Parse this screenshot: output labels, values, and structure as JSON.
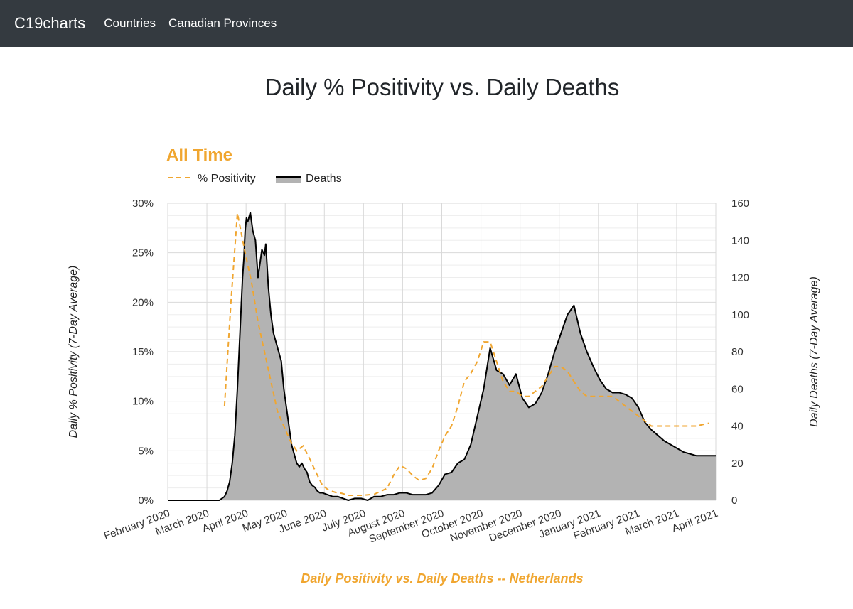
{
  "nav": {
    "brand": "C19charts",
    "links": [
      "Countries",
      "Canadian Provinces"
    ]
  },
  "page_title": "Daily % Positivity vs. Daily Deaths",
  "colors": {
    "navbar": "#343a40",
    "positivity": "#f0a630",
    "deaths_fill": "#b3b3b3",
    "deaths_line": "#000000",
    "grid": "#d9d9d9"
  },
  "chart_data": {
    "type": "line",
    "title": "All Time",
    "subtitle": "Daily Positivity vs. Daily Deaths -- Netherlands",
    "xlabel": "Daily Positivity vs. Daily Deaths -- Netherlands",
    "ylabel_left": "Daily % Positivity (7-Day Average)",
    "ylabel_right": "Daily Deaths (7-Day Average)",
    "legend": [
      "% Positivity",
      "Deaths"
    ],
    "legend_position": "top-left",
    "x_ticks": [
      "February 2020",
      "March 2020",
      "April 2020",
      "May 2020",
      "June 2020",
      "July 2020",
      "August 2020",
      "September 2020",
      "October 2020",
      "November 2020",
      "December 2020",
      "January 2021",
      "February 2021",
      "March 2021",
      "April 2021"
    ],
    "x_range_days": [
      0,
      425
    ],
    "y_left": {
      "ticks": [
        "0%",
        "5%",
        "10%",
        "15%",
        "20%",
        "25%",
        "30%"
      ],
      "range": [
        0,
        30
      ]
    },
    "y_right": {
      "ticks": [
        "0",
        "20",
        "40",
        "60",
        "80",
        "100",
        "120",
        "140",
        "160"
      ],
      "range": [
        0,
        160
      ]
    },
    "grid": true,
    "series": [
      {
        "name": "% Positivity",
        "axis": "left",
        "style": "dashed",
        "x": [
          44,
          49,
          54,
          57,
          60,
          65,
          70,
          75,
          80,
          85,
          90,
          95,
          100,
          105,
          110,
          115,
          120,
          125,
          130,
          135,
          140,
          150,
          160,
          170,
          175,
          180,
          185,
          190,
          195,
          200,
          205,
          210,
          215,
          220,
          225,
          230,
          235,
          240,
          245,
          250,
          255,
          260,
          265,
          270,
          275,
          280,
          285,
          290,
          295,
          300,
          305,
          310,
          315,
          320,
          325,
          330,
          335,
          340,
          345,
          350,
          355,
          360,
          365,
          370,
          375,
          380,
          385,
          390,
          395,
          400,
          405,
          410,
          420
        ],
        "values": [
          9.5,
          20,
          29,
          27,
          25,
          22,
          18,
          15,
          12,
          9,
          7.5,
          6,
          5,
          5.5,
          4.2,
          2.8,
          1.5,
          1.0,
          0.8,
          0.7,
          0.5,
          0.5,
          0.6,
          1.2,
          2.5,
          3.5,
          3.2,
          2.5,
          2,
          2.2,
          3.2,
          5,
          6.5,
          7.5,
          9.5,
          12,
          12.8,
          14,
          16,
          16,
          14,
          12,
          11,
          11,
          10.5,
          10.5,
          11,
          11.5,
          12.5,
          13.5,
          13.5,
          13,
          12,
          11,
          10.5,
          10.5,
          10.5,
          10.5,
          10.5,
          10,
          9.5,
          9,
          8.5,
          8,
          7.5,
          7.5,
          7.5,
          7.5,
          7.5,
          7.5,
          7.5,
          7.5,
          7.8
        ]
      },
      {
        "name": "Deaths",
        "axis": "right",
        "style": "area",
        "x": [
          0,
          40,
          44,
          46,
          48,
          50,
          52,
          54,
          56,
          58,
          59,
          60,
          61,
          62,
          64,
          66,
          68,
          70,
          72,
          73,
          75,
          76,
          78,
          80,
          82,
          84,
          86,
          88,
          90,
          92,
          94,
          96,
          98,
          100,
          102,
          104,
          106,
          108,
          110,
          112,
          114,
          116,
          118,
          120,
          124,
          128,
          132,
          136,
          140,
          145,
          150,
          155,
          160,
          165,
          170,
          175,
          180,
          185,
          190,
          195,
          200,
          205,
          210,
          215,
          220,
          225,
          230,
          235,
          240,
          245,
          250,
          255,
          260,
          265,
          270,
          275,
          280,
          285,
          290,
          295,
          300,
          305,
          310,
          315,
          320,
          325,
          330,
          335,
          340,
          345,
          350,
          355,
          360,
          365,
          370,
          375,
          380,
          385,
          390,
          395,
          400,
          405,
          410,
          415,
          420,
          425
        ],
        "values": [
          0,
          0,
          2,
          5,
          10,
          20,
          35,
          60,
          90,
          120,
          130,
          145,
          152,
          150,
          155,
          145,
          140,
          120,
          130,
          135,
          132,
          138,
          115,
          100,
          90,
          85,
          80,
          75,
          60,
          50,
          40,
          30,
          25,
          20,
          18,
          20,
          17,
          15,
          10,
          8,
          7,
          5,
          4,
          4,
          3,
          2,
          2,
          1,
          0,
          1,
          1,
          0,
          2,
          2,
          3,
          3,
          4,
          4,
          3,
          3,
          3,
          4,
          8,
          14,
          15,
          20,
          22,
          30,
          45,
          60,
          82,
          70,
          68,
          62,
          68,
          55,
          50,
          52,
          58,
          68,
          80,
          90,
          100,
          105,
          90,
          80,
          72,
          65,
          60,
          58,
          58,
          57,
          55,
          50,
          42,
          38,
          35,
          32,
          30,
          28,
          26,
          25,
          24,
          24,
          24,
          24
        ]
      }
    ]
  }
}
